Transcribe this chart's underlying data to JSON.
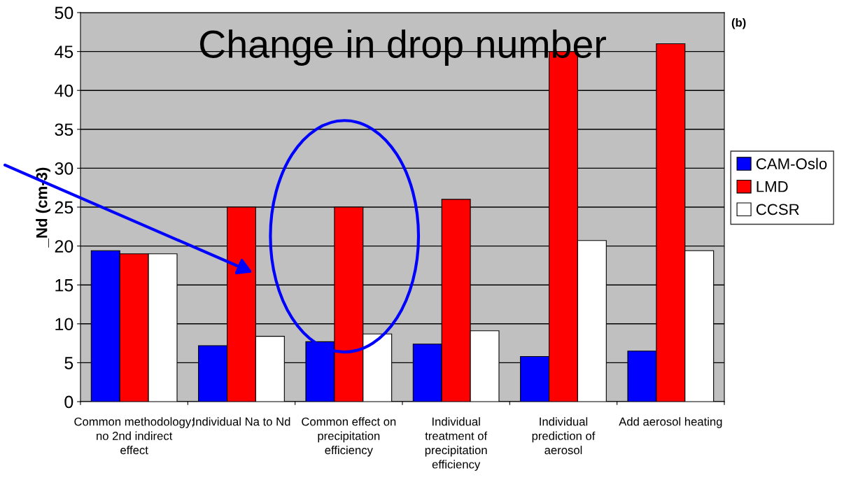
{
  "chart_data": {
    "type": "bar",
    "title": "Change in drop number",
    "ylabel": "_Nd (cm-3)",
    "annotations": [
      "(b)"
    ],
    "categories": [
      "Common methodology; no 2nd indirect effect",
      "Individual Na to Nd",
      "Common effect on precipitation efficiency",
      "Individual treatment of precipitation efficiency",
      "Individual prediction of aerosol",
      "Add aerosol heating"
    ],
    "series": [
      {
        "name": "CAM-Oslo",
        "color": "#0000ff",
        "values": [
          19.4,
          7.2,
          7.7,
          7.4,
          5.8,
          6.5
        ]
      },
      {
        "name": "LMD",
        "color": "#ff0000",
        "values": [
          19.0,
          25.0,
          25.0,
          26.0,
          45.0,
          46.0
        ]
      },
      {
        "name": "CCSR",
        "color": "#ffffff",
        "values": [
          19.0,
          8.4,
          8.7,
          9.1,
          20.7,
          19.4
        ]
      }
    ],
    "ylim": [
      0,
      50
    ],
    "yticks": [
      0,
      5,
      10,
      15,
      20,
      25,
      30,
      35,
      40,
      45,
      50
    ],
    "grid": "y",
    "legend": "right"
  }
}
